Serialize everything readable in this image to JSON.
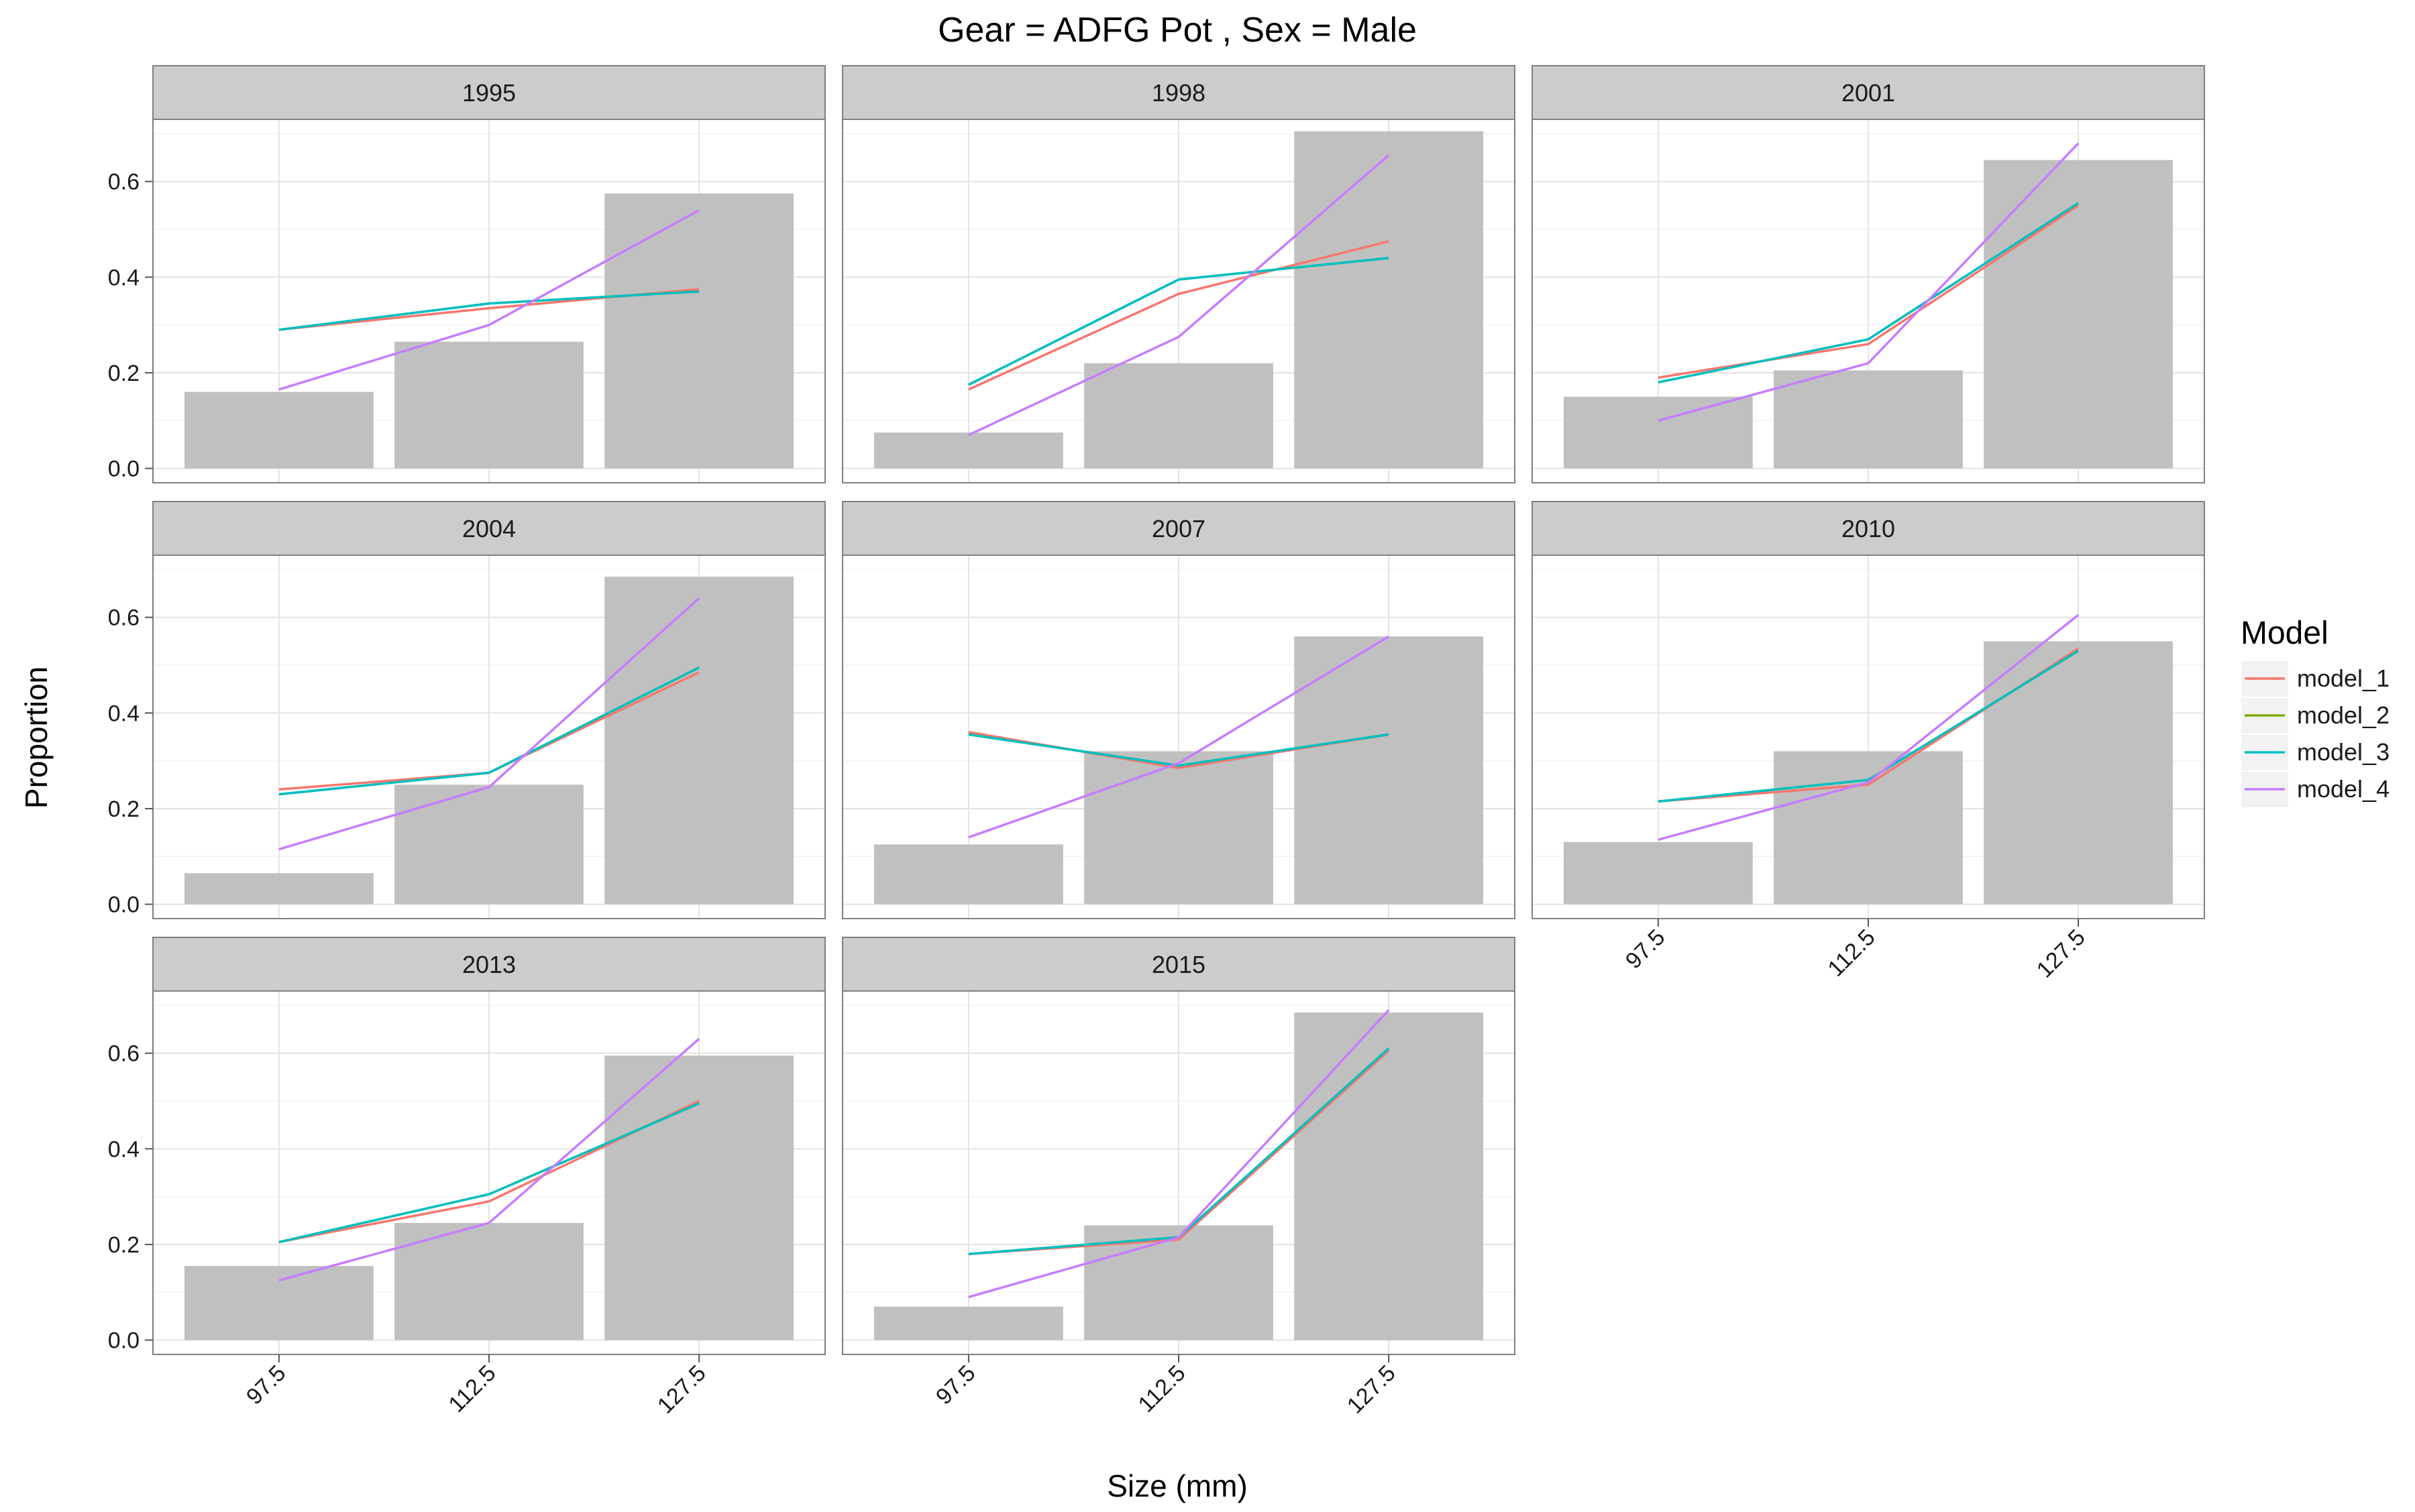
{
  "chart_data": {
    "type": "bar",
    "title": "Gear = ADFG Pot , Sex = Male",
    "xlabel": "Size (mm)",
    "ylabel": "Proportion",
    "categories": [
      "97.5",
      "112.5",
      "127.5"
    ],
    "ylim": [
      -0.03,
      0.73
    ],
    "yticks": [
      "0.0",
      "0.2",
      "0.4",
      "0.6"
    ],
    "grid": true,
    "legend": {
      "title": "Model",
      "position": "right",
      "entries": [
        "model_1",
        "model_2",
        "model_3",
        "model_4"
      ]
    },
    "colors": {
      "model_1": "#F8766D",
      "model_2": "#7CAE00",
      "model_3": "#00BFC4",
      "model_4": "#C77CFF",
      "bar": "#c0c0c0",
      "strip": "#cccccc"
    },
    "panels": [
      {
        "year": "1995",
        "bars": [
          0.16,
          0.265,
          0.575
        ],
        "series": {
          "model_1": [
            0.29,
            0.335,
            0.375
          ],
          "model_2": [
            0.29,
            0.345,
            0.37
          ],
          "model_3": [
            0.29,
            0.345,
            0.37
          ],
          "model_4": [
            0.165,
            0.3,
            0.54
          ]
        }
      },
      {
        "year": "1998",
        "bars": [
          0.075,
          0.22,
          0.705
        ],
        "series": {
          "model_1": [
            0.165,
            0.365,
            0.475
          ],
          "model_2": [
            0.175,
            0.395,
            0.44
          ],
          "model_3": [
            0.175,
            0.395,
            0.44
          ],
          "model_4": [
            0.07,
            0.275,
            0.655
          ]
        }
      },
      {
        "year": "2001",
        "bars": [
          0.15,
          0.205,
          0.645
        ],
        "series": {
          "model_1": [
            0.19,
            0.26,
            0.55
          ],
          "model_2": [
            0.18,
            0.27,
            0.555
          ],
          "model_3": [
            0.18,
            0.27,
            0.555
          ],
          "model_4": [
            0.1,
            0.22,
            0.68
          ]
        }
      },
      {
        "year": "2004",
        "bars": [
          0.065,
          0.25,
          0.685
        ],
        "series": {
          "model_1": [
            0.24,
            0.275,
            0.485
          ],
          "model_2": [
            0.23,
            0.275,
            0.495
          ],
          "model_3": [
            0.23,
            0.275,
            0.495
          ],
          "model_4": [
            0.115,
            0.245,
            0.64
          ]
        }
      },
      {
        "year": "2007",
        "bars": [
          0.125,
          0.32,
          0.56
        ],
        "series": {
          "model_1": [
            0.36,
            0.285,
            0.355
          ],
          "model_2": [
            0.355,
            0.29,
            0.355
          ],
          "model_3": [
            0.355,
            0.29,
            0.355
          ],
          "model_4": [
            0.14,
            0.295,
            0.56
          ]
        }
      },
      {
        "year": "2010",
        "bars": [
          0.13,
          0.32,
          0.55
        ],
        "series": {
          "model_1": [
            0.215,
            0.25,
            0.535
          ],
          "model_2": [
            0.215,
            0.26,
            0.53
          ],
          "model_3": [
            0.215,
            0.26,
            0.53
          ],
          "model_4": [
            0.135,
            0.255,
            0.605
          ]
        }
      },
      {
        "year": "2013",
        "bars": [
          0.155,
          0.245,
          0.595
        ],
        "series": {
          "model_1": [
            0.205,
            0.29,
            0.5
          ],
          "model_2": [
            0.205,
            0.305,
            0.495
          ],
          "model_3": [
            0.205,
            0.305,
            0.495
          ],
          "model_4": [
            0.125,
            0.245,
            0.63
          ]
        }
      },
      {
        "year": "2015",
        "bars": [
          0.07,
          0.24,
          0.685
        ],
        "series": {
          "model_1": [
            0.18,
            0.21,
            0.605
          ],
          "model_2": [
            0.18,
            0.215,
            0.61
          ],
          "model_3": [
            0.18,
            0.215,
            0.61
          ],
          "model_4": [
            0.09,
            0.215,
            0.69
          ]
        }
      }
    ]
  }
}
